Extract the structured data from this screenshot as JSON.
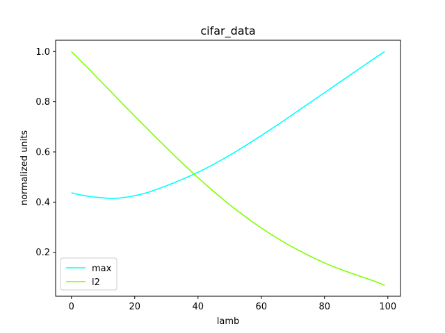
{
  "chart_data": {
    "type": "line",
    "title": "cifar_data",
    "xlabel": "lamb",
    "ylabel": "normalized units",
    "xlim": [
      -5,
      104
    ],
    "ylim": [
      0.025,
      1.045
    ],
    "xticks": [
      0,
      20,
      40,
      60,
      80,
      100
    ],
    "yticks": [
      0.2,
      0.4,
      0.6,
      0.8,
      1.0
    ],
    "xtick_labels": [
      "0",
      "20",
      "40",
      "60",
      "80",
      "100"
    ],
    "ytick_labels": [
      "0.2",
      "0.4",
      "0.6",
      "0.8",
      "1.0"
    ],
    "grid": false,
    "legend_position": "lower-left",
    "series": [
      {
        "name": "max",
        "color": "#00ffff",
        "x": [
          0,
          3,
          6,
          9,
          12,
          15,
          18,
          21,
          24,
          27,
          30,
          33,
          36,
          39,
          42,
          45,
          48,
          51,
          54,
          57,
          60,
          63,
          66,
          69,
          72,
          75,
          78,
          81,
          84,
          87,
          90,
          93,
          96,
          99
        ],
        "y": [
          0.437,
          0.428,
          0.422,
          0.418,
          0.415,
          0.416,
          0.421,
          0.428,
          0.438,
          0.451,
          0.465,
          0.48,
          0.496,
          0.513,
          0.531,
          0.551,
          0.572,
          0.594,
          0.617,
          0.641,
          0.665,
          0.69,
          0.715,
          0.741,
          0.767,
          0.793,
          0.819,
          0.845,
          0.871,
          0.897,
          0.923,
          0.949,
          0.975,
          1.0
        ]
      },
      {
        "name": "l2",
        "color": "#7fff00",
        "x": [
          0,
          3,
          6,
          9,
          12,
          15,
          18,
          21,
          24,
          27,
          30,
          33,
          36,
          39,
          42,
          45,
          48,
          51,
          54,
          57,
          60,
          63,
          66,
          69,
          72,
          75,
          78,
          81,
          84,
          87,
          90,
          93,
          96,
          99
        ],
        "y": [
          1.0,
          0.962,
          0.924,
          0.885,
          0.846,
          0.807,
          0.768,
          0.73,
          0.692,
          0.654,
          0.617,
          0.58,
          0.544,
          0.509,
          0.475,
          0.442,
          0.41,
          0.38,
          0.351,
          0.323,
          0.297,
          0.272,
          0.249,
          0.227,
          0.207,
          0.187,
          0.169,
          0.152,
          0.137,
          0.123,
          0.11,
          0.097,
          0.084,
          0.068
        ]
      }
    ]
  }
}
